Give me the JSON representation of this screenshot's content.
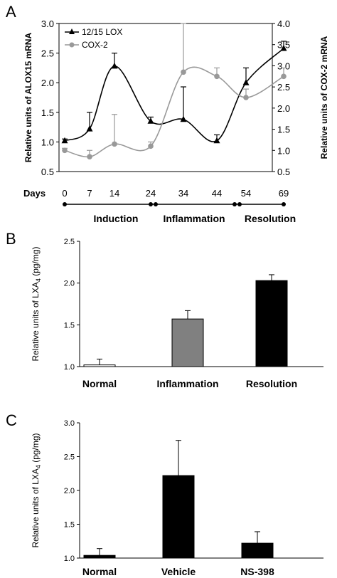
{
  "chart_data": [
    {
      "panel": "A",
      "type": "line",
      "xlabel": "Days",
      "x": [
        0,
        7,
        14,
        24,
        34,
        44,
        54,
        69
      ],
      "ylabel": "Relative units of ALOX15 mRNA",
      "ylabel_right": "Relative units of COX-2 mRNA",
      "ylim": [
        0.5,
        3.0
      ],
      "yticks": [
        "0.5",
        "1.0",
        "1.5",
        "2.0",
        "2.5",
        "3.0"
      ],
      "ylim_right": [
        0.5,
        4.0
      ],
      "yticks_right": [
        "0.5",
        "1.0",
        "1.5",
        "2.0",
        "2.5",
        "3.0",
        "3.5",
        "4.0"
      ],
      "legend_position": "top-left",
      "series": [
        {
          "name": "12/15 LOX",
          "axis": "left",
          "color": "#000000",
          "marker": "triangle",
          "values": [
            1.02,
            1.22,
            2.28,
            1.35,
            1.38,
            1.02,
            2.0,
            2.58
          ],
          "errors": [
            0.03,
            0.28,
            0.22,
            0.07,
            0.55,
            0.1,
            0.25,
            0.12
          ]
        },
        {
          "name": "COX-2",
          "axis": "right",
          "color": "#999999",
          "marker": "circle",
          "values": [
            1.0,
            0.85,
            1.15,
            1.1,
            2.85,
            2.75,
            2.25,
            2.75
          ],
          "errors": [
            0.05,
            0.15,
            0.7,
            0.1,
            1.15,
            0.2,
            0.2,
            0.2
          ]
        }
      ],
      "phases": [
        "Induction",
        "Inflammation",
        "Resolution"
      ]
    },
    {
      "panel": "B",
      "type": "bar",
      "categories": [
        "Normal",
        "Inflammation",
        "Resolution"
      ],
      "values": [
        1.02,
        1.57,
        2.03
      ],
      "errors": [
        0.07,
        0.1,
        0.07
      ],
      "colors": [
        "#ffffff",
        "#808080",
        "#000000"
      ],
      "ylabel_main": "Relative units of LXA",
      "ylabel_sub": "4",
      "ylabel_unit": " (pg/mg)",
      "ylim": [
        1.0,
        2.5
      ],
      "yticks": [
        "1.0",
        "1.5",
        "2.0",
        "2.5"
      ]
    },
    {
      "panel": "C",
      "type": "bar",
      "categories": [
        "Normal",
        "Vehicle",
        "NS-398"
      ],
      "values": [
        1.04,
        2.22,
        1.22
      ],
      "errors": [
        0.1,
        0.52,
        0.17
      ],
      "colors": [
        "#000000",
        "#000000",
        "#000000"
      ],
      "ylabel_main": "Relative units of LXA",
      "ylabel_sub": "4",
      "ylabel_unit": " (pg/mg)",
      "ylim": [
        1.0,
        3.0
      ],
      "yticks": [
        "1.0",
        "1.5",
        "2.0",
        "2.5",
        "3.0"
      ]
    }
  ]
}
